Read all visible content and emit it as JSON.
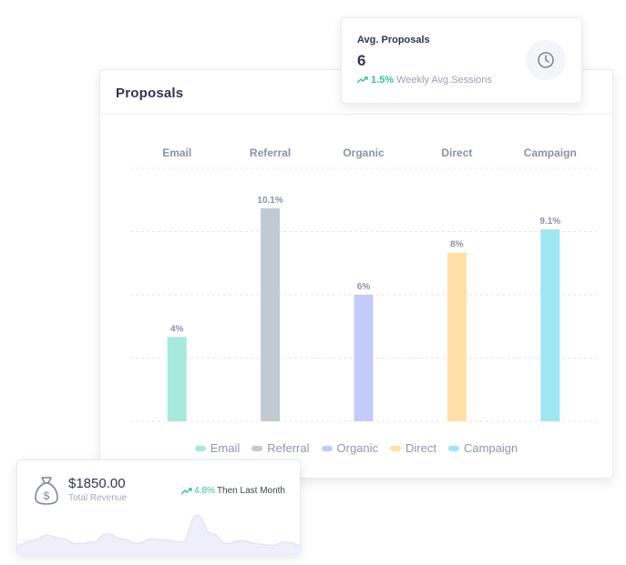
{
  "main_card": {
    "title": "Proposals"
  },
  "chart_data": {
    "type": "bar",
    "categories": [
      "Email",
      "Referral",
      "Organic",
      "Direct",
      "Campaign"
    ],
    "values": [
      4,
      10.1,
      6,
      8,
      9.1
    ],
    "data_labels": [
      "4%",
      "10.1%",
      "6%",
      "8%",
      "9.1%"
    ],
    "colors": [
      "#a5eada",
      "#c1c9d3",
      "#c3cbf9",
      "#ffe0a6",
      "#9ee6f2"
    ],
    "ylim": [
      0,
      12
    ],
    "grid": true,
    "legend_position": "bottom",
    "legend": [
      "Email",
      "Referral",
      "Organic",
      "Direct",
      "Campaign"
    ]
  },
  "avg_card": {
    "title": "Avg. Proposals",
    "value": "6",
    "trend_pct": "1.5%",
    "trend_label": "Weekly Avg.Sessions",
    "icon": "clock-icon"
  },
  "revenue_card": {
    "value": "$1850.00",
    "label": "Total Revenue",
    "trend_pct": "4.8%",
    "trend_label": "Then Last Month",
    "icon": "money-bag-icon",
    "sparkline": [
      3,
      6,
      9,
      7,
      4,
      5,
      10,
      7,
      4,
      7,
      6,
      5,
      21,
      10,
      4,
      6,
      4,
      3,
      5,
      3
    ]
  }
}
